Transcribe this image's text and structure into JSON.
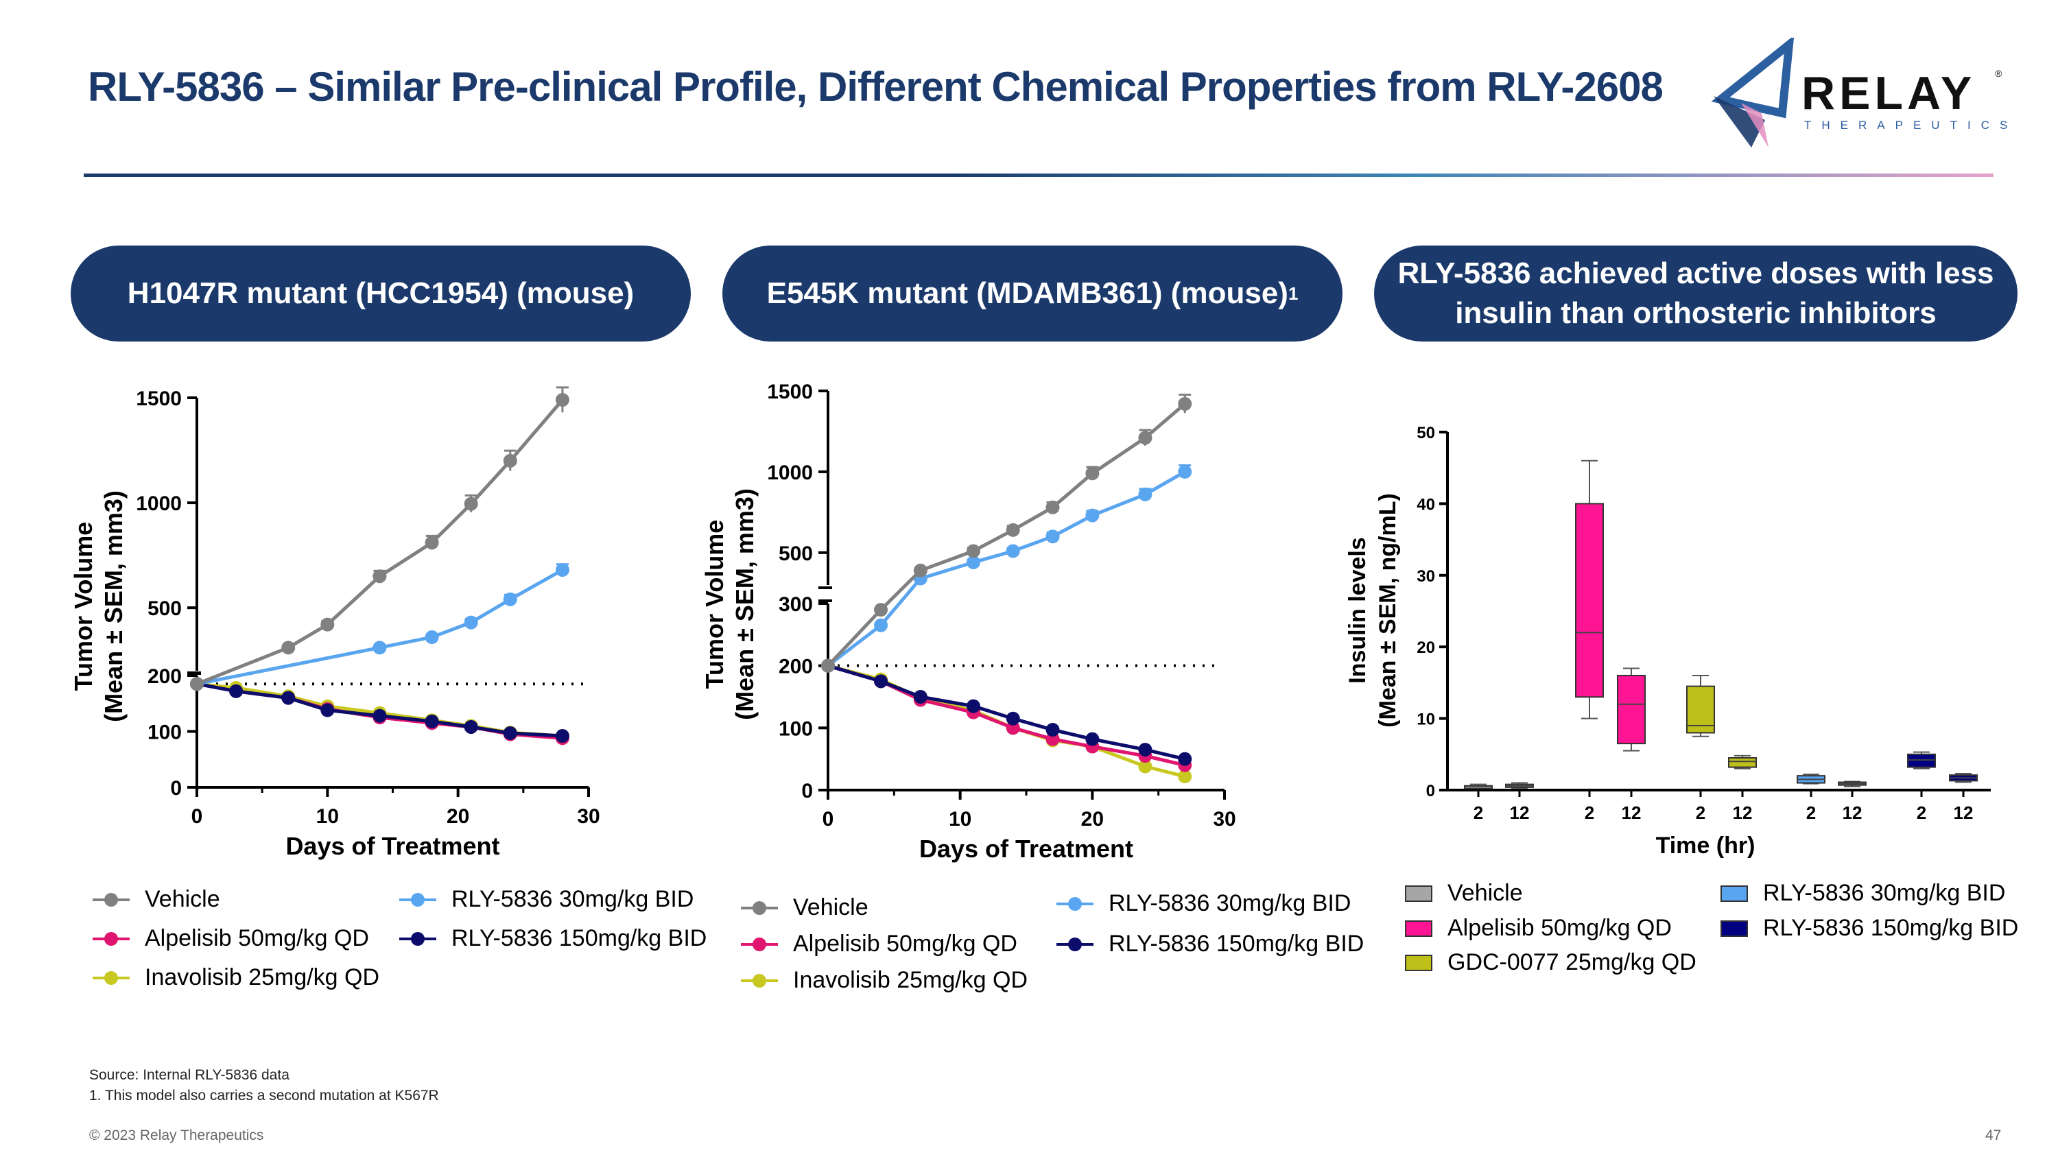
{
  "header": {
    "title": "RLY-5836 – Similar Pre-clinical Profile, Different Chemical Properties from RLY-2608",
    "logo_word": "RELAY",
    "logo_reg": "®",
    "logo_sub": "THERAPEUTICS"
  },
  "pills": {
    "left": "H1047R mutant (HCC1954) (mouse)",
    "middle": "E545K mutant (MDAMB361) (mouse)",
    "middle_sup": "1",
    "right_line1": "RLY-5836 achieved active doses with less",
    "right_line2": "insulin than orthosteric inhibitors"
  },
  "legend_lines": [
    {
      "label": "Vehicle",
      "color": "#808080"
    },
    {
      "label": "Alpelisib 50mg/kg QD",
      "color": "#e0156f"
    },
    {
      "label": "Inavolisib 25mg/kg QD",
      "color": "#c7c820"
    },
    {
      "label": "RLY-5836 30mg/kg BID",
      "color": "#5aa5ef"
    },
    {
      "label": "RLY-5836 150mg/kg BID",
      "color": "#0c0c6b"
    }
  ],
  "legend_boxes": [
    {
      "label": "Vehicle",
      "color": "#a6a6a6"
    },
    {
      "label": "Alpelisib 50mg/kg QD",
      "color": "#ff1493"
    },
    {
      "label": "GDC-0077 25mg/kg QD",
      "color": "#bfbf1a"
    },
    {
      "label": "RLY-5836 30mg/kg BID",
      "color": "#5aa5ef"
    },
    {
      "label": "RLY-5836 150mg/kg BID",
      "color": "#000080"
    }
  ],
  "chart_data": [
    {
      "type": "line",
      "title": "H1047R mutant (HCC1954) (mouse)",
      "xlabel": "Days of Treatment",
      "ylabel_line1": "Tumor Volume",
      "ylabel_line2": "(Mean ± SEM, mm3)",
      "xlim": [
        0,
        30
      ],
      "x_ticks": [
        "0",
        "10",
        "20",
        "30"
      ],
      "y_ticks": [
        "0",
        "100",
        "200",
        "500",
        "1000",
        "1500"
      ],
      "y_axis": "broken: linear 0–200 below break, linear 200–1500 above break",
      "reference_line": 185,
      "series": [
        {
          "name": "Vehicle",
          "x": [
            0,
            7,
            10,
            14,
            18,
            21,
            24,
            28
          ],
          "y": [
            185,
            310,
            420,
            650,
            810,
            995,
            1200,
            1490
          ]
        },
        {
          "name": "RLY-5836 30mg/kg BID",
          "x": [
            0,
            14,
            18,
            21,
            24,
            28
          ],
          "y": [
            185,
            310,
            360,
            430,
            540,
            680
          ]
        },
        {
          "name": "Alpelisib 50mg/kg QD",
          "x": [
            0,
            3,
            7,
            10,
            14,
            18,
            21,
            24,
            28
          ],
          "y": [
            185,
            172,
            160,
            140,
            125,
            115,
            108,
            95,
            88
          ]
        },
        {
          "name": "Inavolisib 25mg/kg QD",
          "x": [
            0,
            3,
            7,
            10,
            14,
            18,
            21,
            24,
            28
          ],
          "y": [
            185,
            178,
            163,
            145,
            133,
            120,
            110,
            98,
            92
          ]
        },
        {
          "name": "RLY-5836 150mg/kg BID",
          "x": [
            0,
            3,
            7,
            10,
            14,
            18,
            21,
            24,
            28
          ],
          "y": [
            185,
            172,
            160,
            138,
            128,
            118,
            108,
            97,
            92
          ]
        }
      ]
    },
    {
      "type": "line",
      "title": "E545K mutant (MDAMB361) (mouse)",
      "xlabel": "Days of  Treatment",
      "ylabel_line1": "Tumor Volume",
      "ylabel_line2": "(Mean ± SEM, mm3)",
      "xlim": [
        0,
        30
      ],
      "x_ticks": [
        "0",
        "10",
        "20",
        "30"
      ],
      "y_ticks": [
        "0",
        "100",
        "200",
        "300",
        "500",
        "1000",
        "1500"
      ],
      "y_axis": "broken: linear 0–300 below break, linear 300–1500 above break",
      "reference_line": 200,
      "series": [
        {
          "name": "Vehicle",
          "x": [
            0,
            4,
            7,
            11,
            14,
            17,
            20,
            24,
            27
          ],
          "y": [
            200,
            290,
            390,
            510,
            640,
            780,
            990,
            1210,
            1420
          ]
        },
        {
          "name": "RLY-5836 30mg/kg BID",
          "x": [
            0,
            4,
            7,
            11,
            14,
            17,
            20,
            24,
            27
          ],
          "y": [
            200,
            265,
            340,
            440,
            510,
            600,
            730,
            860,
            1000
          ]
        },
        {
          "name": "Alpelisib 50mg/kg QD",
          "x": [
            0,
            4,
            7,
            11,
            14,
            17,
            20,
            24,
            27
          ],
          "y": [
            200,
            175,
            145,
            125,
            100,
            82,
            70,
            55,
            40
          ]
        },
        {
          "name": "Inavolisib 25mg/kg QD",
          "x": [
            0,
            4,
            7,
            11,
            14,
            17,
            20,
            24,
            27
          ],
          "y": [
            200,
            178,
            148,
            128,
            100,
            80,
            70,
            38,
            22
          ]
        },
        {
          "name": "RLY-5836 150mg/kg BID",
          "x": [
            0,
            4,
            7,
            11,
            14,
            17,
            20,
            24,
            27
          ],
          "y": [
            200,
            175,
            150,
            135,
            115,
            97,
            82,
            65,
            50
          ]
        }
      ]
    },
    {
      "type": "box",
      "title": "RLY-5836 achieved active doses with less insulin than orthosteric inhibitors",
      "xlabel": "Time (hr)",
      "ylabel_line1": "Insulin levels",
      "ylabel_line2": "(Mean ± SEM, ng/mL)",
      "ylim": [
        0,
        50
      ],
      "y_ticks": [
        "0",
        "10",
        "20",
        "30",
        "40",
        "50"
      ],
      "groups": [
        {
          "name": "Vehicle",
          "boxes": [
            {
              "time": "2",
              "min": 0.3,
              "q1": 0.4,
              "median": 0.5,
              "q3": 0.6,
              "max": 0.8
            },
            {
              "time": "12",
              "min": 0.3,
              "q1": 0.4,
              "median": 0.6,
              "q3": 0.8,
              "max": 1.0
            }
          ]
        },
        {
          "name": "Alpelisib 50mg/kg QD",
          "boxes": [
            {
              "time": "2",
              "min": 10,
              "q1": 13,
              "median": 22,
              "q3": 40,
              "max": 46
            },
            {
              "time": "12",
              "min": 5.5,
              "q1": 6.5,
              "median": 12,
              "q3": 16,
              "max": 17
            }
          ]
        },
        {
          "name": "GDC-0077 25mg/kg QD",
          "boxes": [
            {
              "time": "2",
              "min": 7.5,
              "q1": 8,
              "median": 9,
              "q3": 14.5,
              "max": 16
            },
            {
              "time": "12",
              "min": 3,
              "q1": 3.2,
              "median": 4,
              "q3": 4.5,
              "max": 4.8
            }
          ]
        },
        {
          "name": "RLY-5836 30mg/kg BID",
          "boxes": [
            {
              "time": "2",
              "min": 0.9,
              "q1": 1,
              "median": 1.5,
              "q3": 2,
              "max": 2.2
            },
            {
              "time": "12",
              "min": 0.5,
              "q1": 0.7,
              "median": 0.9,
              "q3": 1.1,
              "max": 1.2
            }
          ]
        },
        {
          "name": "RLY-5836 150mg/kg BID",
          "boxes": [
            {
              "time": "2",
              "min": 3,
              "q1": 3.2,
              "median": 4.2,
              "q3": 5,
              "max": 5.3
            },
            {
              "time": "12",
              "min": 1.1,
              "q1": 1.3,
              "median": 1.7,
              "q3": 2.1,
              "max": 2.3
            }
          ]
        }
      ]
    }
  ],
  "footer": {
    "source": "Source: Internal RLY-5836 data",
    "footnote": "1. This model also carries a second mutation at K567R",
    "copyright": "© 2023 Relay Therapeutics",
    "page": "47"
  }
}
